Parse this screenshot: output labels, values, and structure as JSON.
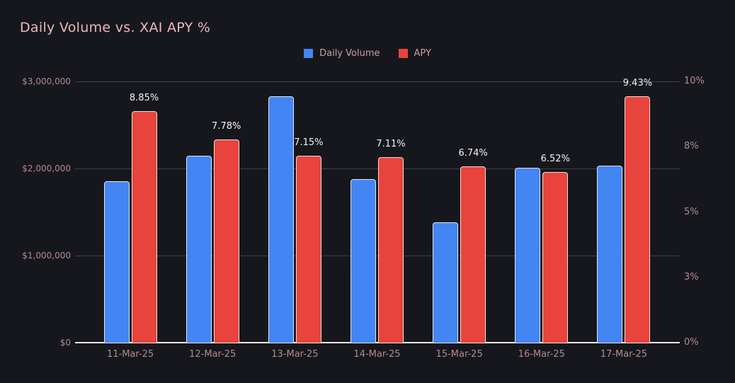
{
  "chart_data": {
    "type": "bar",
    "title": "Daily Volume vs. XAI APY %",
    "legend_position": "top",
    "grid": true,
    "categories": [
      "11-Mar-25",
      "12-Mar-25",
      "13-Mar-25",
      "14-Mar-25",
      "15-Mar-25",
      "16-Mar-25",
      "17-Mar-25"
    ],
    "series": [
      {
        "name": "Daily Volume",
        "axis": "left",
        "color": "#4485f4",
        "values": [
          1850000,
          2150000,
          2830000,
          1880000,
          1380000,
          2010000,
          2030000
        ]
      },
      {
        "name": "APY",
        "axis": "right",
        "color": "#e8433c",
        "values": [
          8.85,
          7.78,
          7.15,
          7.11,
          6.74,
          6.52,
          9.43
        ],
        "labels": [
          "8.85%",
          "7.78%",
          "7.15%",
          "7.11%",
          "6.74%",
          "6.52%",
          "9.43%"
        ]
      }
    ],
    "left_axis": {
      "ticks": [
        "$0",
        "$1,000,000",
        "$2,000,000",
        "$3,000,000"
      ],
      "range": [
        0,
        3000000
      ]
    },
    "right_axis": {
      "ticks": [
        "0%",
        "3%",
        "5%",
        "8%",
        "10%"
      ],
      "range": [
        0,
        10
      ]
    }
  },
  "colors": {
    "background": "#16171c",
    "title": "#ecb7bc",
    "axis_label": "#b48a8e",
    "gridline": "#3f4046",
    "baseline": "#e9e7e4",
    "volume_bar": "#4485f4",
    "apy_bar": "#e8433c",
    "data_label": "#f2f2f2"
  }
}
